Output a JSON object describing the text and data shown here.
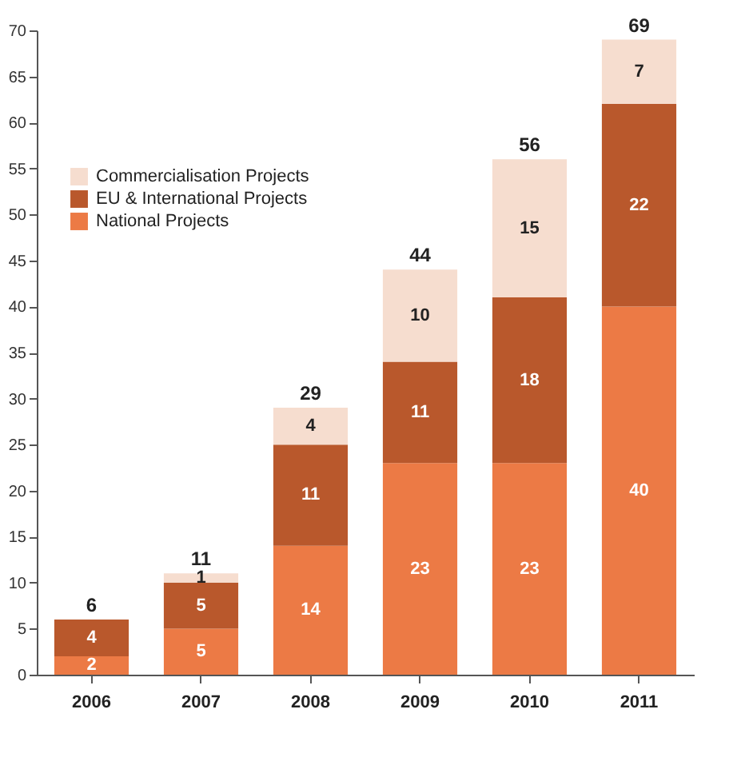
{
  "chart_data": {
    "type": "bar",
    "stacked": true,
    "categories": [
      "2006",
      "2007",
      "2008",
      "2009",
      "2010",
      "2011"
    ],
    "series": [
      {
        "name": "National Projects",
        "color": "#ec7a45",
        "values": [
          2,
          5,
          14,
          23,
          23,
          40
        ]
      },
      {
        "name": "EU & International Projects",
        "color": "#b9582c",
        "values": [
          4,
          5,
          11,
          11,
          18,
          22
        ]
      },
      {
        "name": "Commercialisation Projects",
        "color": "#f6ddcf",
        "values": [
          null,
          1,
          4,
          10,
          15,
          7
        ]
      }
    ],
    "ylim": [
      0,
      70
    ],
    "yticks": [
      0,
      5,
      10,
      15,
      20,
      25,
      30,
      35,
      40,
      45,
      50,
      55,
      60,
      65,
      70
    ],
    "data_labels": true,
    "totals": [
      "6",
      "11",
      "29",
      "44",
      "56",
      "69"
    ],
    "legend": "top left",
    "grid": false
  }
}
